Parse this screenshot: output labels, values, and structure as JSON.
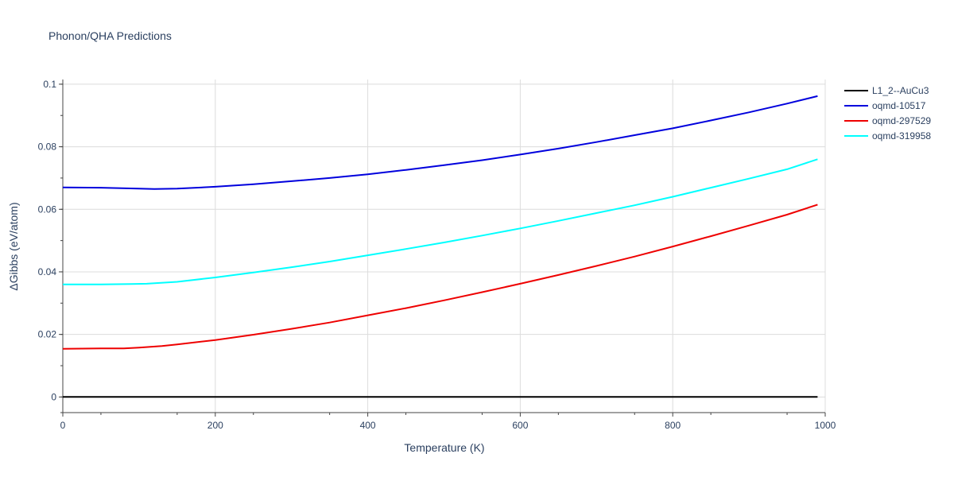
{
  "chart_data": {
    "type": "line",
    "title": "Phonon/QHA Predictions",
    "xlabel": "Temperature (K)",
    "ylabel": "ΔGibbs (eV/atom)",
    "xlim": [
      0,
      1000
    ],
    "ylim": [
      -0.005,
      0.1015
    ],
    "x_ticks": [
      0,
      200,
      400,
      600,
      800,
      1000
    ],
    "x_tick_labels": [
      "0",
      "200",
      "400",
      "600",
      "800",
      "1000"
    ],
    "y_ticks": [
      0,
      0.02,
      0.04,
      0.06,
      0.08,
      0.1
    ],
    "y_tick_labels": [
      "0",
      "0.02",
      "0.04",
      "0.06",
      "0.08",
      "0.1"
    ],
    "grid": true,
    "legend_position": "top-right",
    "series": [
      {
        "name": "L1_2--AuCu3",
        "color": "#000000",
        "x": [
          0,
          100,
          200,
          300,
          400,
          500,
          600,
          700,
          800,
          900,
          990
        ],
        "y": [
          0,
          0,
          0,
          0,
          0,
          0,
          0,
          0,
          0,
          0,
          0
        ]
      },
      {
        "name": "oqmd-10517",
        "color": "#0000dd",
        "x": [
          0,
          50,
          100,
          120,
          150,
          200,
          250,
          300,
          350,
          400,
          450,
          500,
          550,
          600,
          650,
          700,
          750,
          800,
          850,
          900,
          950,
          990
        ],
        "y": [
          0.067,
          0.0669,
          0.0666,
          0.0665,
          0.0666,
          0.0672,
          0.068,
          0.069,
          0.07,
          0.0712,
          0.0726,
          0.0741,
          0.0757,
          0.0775,
          0.0794,
          0.0815,
          0.0837,
          0.0859,
          0.0884,
          0.091,
          0.0938,
          0.0962
        ]
      },
      {
        "name": "oqmd-297529",
        "color": "#ee0000",
        "x": [
          0,
          50,
          80,
          100,
          130,
          150,
          200,
          250,
          300,
          350,
          400,
          450,
          500,
          550,
          600,
          650,
          700,
          750,
          800,
          850,
          900,
          950,
          990
        ],
        "y": [
          0.0154,
          0.0155,
          0.0155,
          0.0158,
          0.0163,
          0.0168,
          0.0182,
          0.0199,
          0.0218,
          0.0238,
          0.0261,
          0.0284,
          0.0309,
          0.0335,
          0.0362,
          0.039,
          0.0419,
          0.0449,
          0.0481,
          0.0514,
          0.0548,
          0.0583,
          0.0615
        ]
      },
      {
        "name": "oqmd-319958",
        "color": "#00ffff",
        "x": [
          0,
          50,
          90,
          110,
          150,
          200,
          250,
          300,
          350,
          400,
          450,
          500,
          550,
          600,
          650,
          700,
          750,
          800,
          850,
          900,
          950,
          990
        ],
        "y": [
          0.036,
          0.036,
          0.0361,
          0.0362,
          0.0368,
          0.0382,
          0.0398,
          0.0415,
          0.0433,
          0.0453,
          0.0473,
          0.0494,
          0.0516,
          0.0539,
          0.0563,
          0.0588,
          0.0613,
          0.064,
          0.0669,
          0.0698,
          0.0728,
          0.076
        ]
      }
    ]
  }
}
